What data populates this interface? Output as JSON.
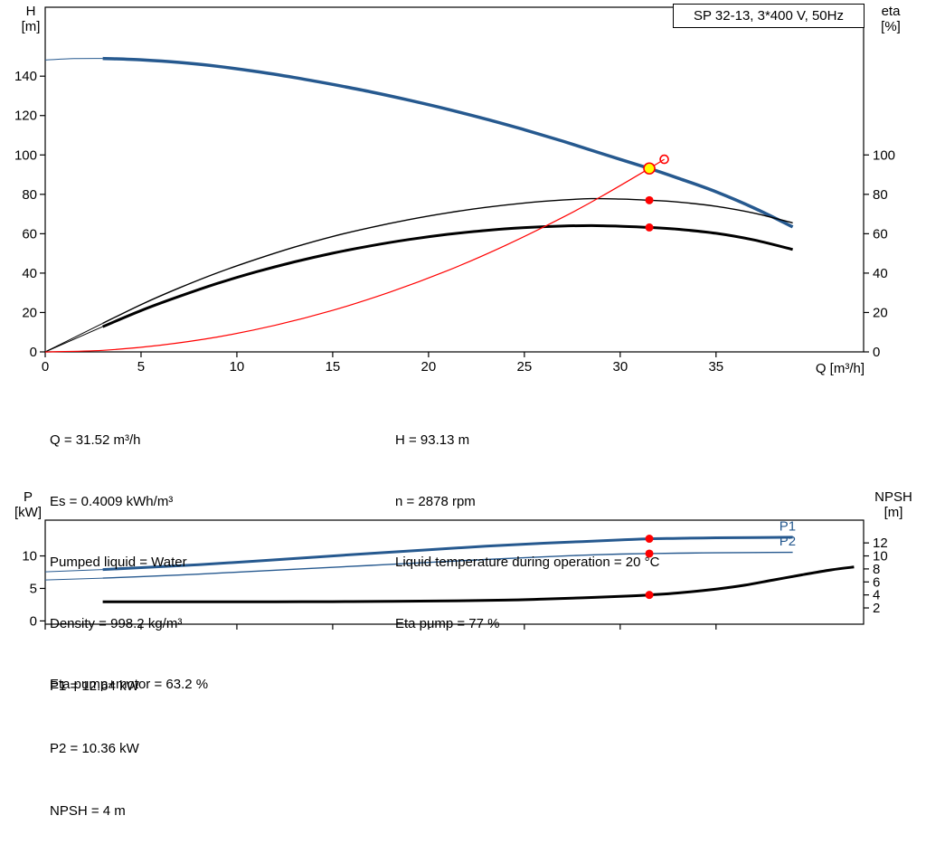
{
  "info": {
    "left": [
      "Q = 31.52 m³/h",
      "Es = 0.4009 kWh/m³",
      "Pumped liquid = Water",
      "Density = 998.2 kg/m³",
      "Eta pump+motor = 63.2 %"
    ],
    "right": [
      "H = 93.13 m",
      "n = 2878 rpm",
      "Liquid temperature during operation = 20 °C",
      "Eta pump = 77 %"
    ],
    "results": [
      "P1 = 12.64 kW",
      "P2 = 10.36 kW",
      "NPSH = 4 m"
    ]
  },
  "colors": {
    "curve_blue": "#26598f",
    "curve_black": "#000000",
    "curve_red": "#ff0000",
    "duty_yellow": "#ffff00",
    "frame": "#000000"
  },
  "chart_data": [
    {
      "type": "line",
      "title": "SP 32-13, 3*400 V, 50Hz",
      "x": {
        "label": "Q [m³/h]",
        "min": 0,
        "max": 42.7,
        "ticks": [
          0,
          5,
          10,
          15,
          20,
          25,
          30,
          35
        ],
        "show_labels": true
      },
      "yl": {
        "name": "H",
        "unit": "[m]",
        "min": 0,
        "max": 175,
        "ticks": [
          0,
          20,
          40,
          60,
          80,
          100,
          120,
          140
        ]
      },
      "yr": {
        "name": "eta",
        "unit": "[%]",
        "min": 0,
        "max": 175,
        "ticks": [
          0,
          20,
          40,
          60,
          80,
          100
        ]
      },
      "series": [
        {
          "name": "head-lead",
          "color": "#26598f",
          "w": 1,
          "pts": [
            [
              0,
              148.2
            ],
            [
              1.5,
              148.9
            ],
            [
              3,
              149
            ]
          ]
        },
        {
          "name": "head",
          "color": "#26598f",
          "w": 3.5,
          "pts": [
            [
              3,
              149
            ],
            [
              5,
              148.3
            ],
            [
              7,
              147
            ],
            [
              9,
              145
            ],
            [
              11,
              142.4
            ],
            [
              13,
              139.3
            ],
            [
              15,
              135.8
            ],
            [
              17,
              132
            ],
            [
              19,
              127.8
            ],
            [
              21,
              123.2
            ],
            [
              23,
              118.2
            ],
            [
              25,
              112.8
            ],
            [
              27,
              107
            ],
            [
              29,
              100.8
            ],
            [
              31.52,
              93.13
            ],
            [
              33,
              88.3
            ],
            [
              35,
              81.3
            ],
            [
              37,
              73
            ],
            [
              39,
              63.5
            ]
          ]
        },
        {
          "name": "eta-pump-lead",
          "color": "#000000",
          "w": 1,
          "pts": [
            [
              0,
              0
            ],
            [
              3,
              14.5
            ]
          ]
        },
        {
          "name": "eta-pump",
          "color": "#000000",
          "w": 1.4,
          "pts": [
            [
              3,
              14.5
            ],
            [
              5,
              24
            ],
            [
              7,
              32.5
            ],
            [
              9,
              40.2
            ],
            [
              11,
              47
            ],
            [
              13,
              53.2
            ],
            [
              15,
              58.6
            ],
            [
              17,
              63.2
            ],
            [
              19,
              67.2
            ],
            [
              21,
              70.6
            ],
            [
              23,
              73.4
            ],
            [
              25,
              75.6
            ],
            [
              27,
              77.1
            ],
            [
              28.5,
              77.8
            ],
            [
              30,
              77.6
            ],
            [
              31.52,
              77
            ],
            [
              33,
              76.1
            ],
            [
              35,
              73.9
            ],
            [
              37,
              70.4
            ],
            [
              39,
              65.5
            ]
          ]
        },
        {
          "name": "eta-pump-motor-lead",
          "color": "#000000",
          "w": 1,
          "pts": [
            [
              0,
              0
            ],
            [
              3,
              12.8
            ]
          ]
        },
        {
          "name": "eta-pump-motor",
          "color": "#000000",
          "w": 3,
          "pts": [
            [
              3,
              12.8
            ],
            [
              5,
              21
            ],
            [
              7,
              28.2
            ],
            [
              9,
              34.8
            ],
            [
              11,
              40.6
            ],
            [
              13,
              45.7
            ],
            [
              15,
              50.1
            ],
            [
              17,
              53.9
            ],
            [
              19,
              57.1
            ],
            [
              21,
              59.7
            ],
            [
              23,
              61.7
            ],
            [
              25,
              63.1
            ],
            [
              27,
              63.9
            ],
            [
              28.5,
              64.1
            ],
            [
              30,
              63.8
            ],
            [
              31.52,
              63.2
            ],
            [
              33,
              62.3
            ],
            [
              35,
              60.2
            ],
            [
              37,
              56.8
            ],
            [
              39,
              52
            ]
          ]
        },
        {
          "name": "system-curve",
          "color": "#ff0000",
          "w": 1.2,
          "pts": [
            [
              0,
              0
            ],
            [
              3,
              0.8
            ],
            [
              6,
              3.4
            ],
            [
              9,
              7.6
            ],
            [
              12,
              13.5
            ],
            [
              15,
              21.1
            ],
            [
              18,
              30.4
            ],
            [
              21,
              41.3
            ],
            [
              24,
              54
            ],
            [
              27,
              68.3
            ],
            [
              29,
              78.8
            ],
            [
              31.52,
              93.13
            ],
            [
              32.3,
              97.8
            ]
          ]
        }
      ],
      "markers": [
        {
          "name": "duty-point-marker",
          "q": 31.52,
          "v": 93.13,
          "r": 6,
          "fill": "#ffff00",
          "stroke": "#ff0000",
          "sw": 1.6
        },
        {
          "name": "target-point-marker",
          "q": 32.3,
          "v": 97.8,
          "r": 4.5,
          "fill": "none",
          "stroke": "#ff0000",
          "sw": 1.6
        },
        {
          "name": "eta-pump-point-marker",
          "q": 31.52,
          "v": 77,
          "r": 4.5,
          "fill": "#ff0000"
        },
        {
          "name": "eta-pump-motor-point-marker",
          "q": 31.52,
          "v": 63.2,
          "r": 4.5,
          "fill": "#ff0000"
        }
      ]
    },
    {
      "type": "line",
      "x": {
        "label": "",
        "min": 0,
        "max": 42.7,
        "ticks": [
          0,
          5,
          10,
          15,
          20,
          25,
          30,
          35
        ],
        "show_labels": false
      },
      "yl": {
        "name": "P",
        "unit": "[kW]",
        "min": -0.5,
        "max": 15.5,
        "ticks": [
          0,
          5,
          10
        ]
      },
      "yr": {
        "name": "NPSH",
        "unit": "[m]",
        "min": -0.5,
        "max": 15.5,
        "ticks": [
          2,
          4,
          6,
          8,
          10,
          12
        ]
      },
      "series": [
        {
          "name": "p1-lead",
          "color": "#26598f",
          "w": 1,
          "pts": [
            [
              0,
              7.55
            ],
            [
              3,
              7.9
            ]
          ]
        },
        {
          "name": "p1",
          "color": "#26598f",
          "w": 3,
          "pts": [
            [
              3,
              7.9
            ],
            [
              5,
              8.2
            ],
            [
              8,
              8.65
            ],
            [
              11,
              9.2
            ],
            [
              14,
              9.8
            ],
            [
              17,
              10.4
            ],
            [
              20,
              10.95
            ],
            [
              23,
              11.5
            ],
            [
              26,
              11.95
            ],
            [
              28,
              12.2
            ],
            [
              30,
              12.45
            ],
            [
              31.52,
              12.64
            ],
            [
              33,
              12.7
            ],
            [
              35,
              12.78
            ],
            [
              37,
              12.83
            ],
            [
              39,
              12.87
            ]
          ]
        },
        {
          "name": "p2-lead",
          "color": "#26598f",
          "w": 1,
          "pts": [
            [
              0,
              6.3
            ],
            [
              3,
              6.58
            ]
          ]
        },
        {
          "name": "p2",
          "color": "#26598f",
          "w": 1.4,
          "pts": [
            [
              3,
              6.58
            ],
            [
              5,
              6.82
            ],
            [
              8,
              7.2
            ],
            [
              11,
              7.65
            ],
            [
              14,
              8.1
            ],
            [
              17,
              8.55
            ],
            [
              20,
              9
            ],
            [
              23,
              9.45
            ],
            [
              26,
              9.85
            ],
            [
              28,
              10.1
            ],
            [
              30,
              10.28
            ],
            [
              31.52,
              10.36
            ],
            [
              33,
              10.42
            ],
            [
              35,
              10.48
            ],
            [
              37,
              10.52
            ],
            [
              39,
              10.55
            ]
          ]
        },
        {
          "name": "npsh",
          "color": "#000000",
          "w": 3,
          "axis": "r",
          "pts": [
            [
              3,
              2.95
            ],
            [
              6,
              2.95
            ],
            [
              9,
              2.95
            ],
            [
              12,
              2.95
            ],
            [
              15,
              2.97
            ],
            [
              18,
              3
            ],
            [
              21,
              3.07
            ],
            [
              24,
              3.2
            ],
            [
              26,
              3.35
            ],
            [
              28,
              3.55
            ],
            [
              30,
              3.78
            ],
            [
              31.52,
              4
            ],
            [
              33,
              4.3
            ],
            [
              35,
              4.9
            ],
            [
              36.5,
              5.5
            ],
            [
              38,
              6.3
            ],
            [
              39.5,
              7.1
            ],
            [
              41,
              7.85
            ],
            [
              42.2,
              8.3
            ]
          ]
        }
      ],
      "annotations": [
        {
          "text": "P1",
          "q": 38.3,
          "v": 13.9,
          "color": "#26598f"
        },
        {
          "text": "P2",
          "q": 38.3,
          "v": 11.6,
          "color": "#26598f"
        }
      ],
      "markers": [
        {
          "name": "p1-point-marker",
          "q": 31.52,
          "v": 12.64,
          "r": 4.5,
          "fill": "#ff0000"
        },
        {
          "name": "p2-point-marker",
          "q": 31.52,
          "v": 10.36,
          "r": 4.5,
          "fill": "#ff0000"
        },
        {
          "name": "npsh-point-marker",
          "q": 31.52,
          "v": 4,
          "r": 4.5,
          "fill": "#ff0000"
        }
      ]
    }
  ]
}
